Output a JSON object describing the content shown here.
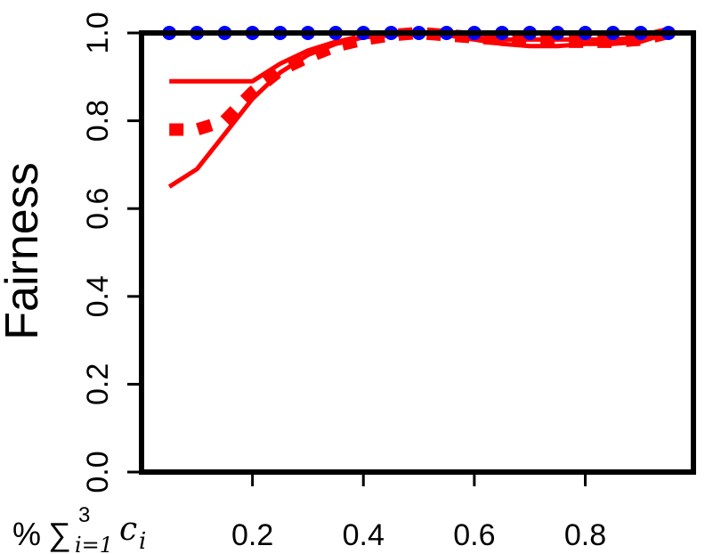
{
  "chart_data": {
    "type": "line",
    "ylabel": "Fairness",
    "xlabel_parts": {
      "percent": "%",
      "sum_symbol": "∑",
      "sum_lower": "i=1",
      "sum_upper": "3",
      "term": "c",
      "term_sub": "i"
    },
    "xlim": [
      0.05,
      0.95
    ],
    "ylim": [
      0.0,
      1.0
    ],
    "x_ticks": [
      0.2,
      0.4,
      0.6,
      0.8
    ],
    "x_tick_labels": [
      "0.2",
      "0.4",
      "0.6",
      "0.8"
    ],
    "y_ticks": [
      0.0,
      0.2,
      0.4,
      0.6,
      0.8,
      1.0
    ],
    "y_tick_labels": [
      "0.0",
      "0.2",
      "0.4",
      "0.6",
      "0.8",
      "1.0"
    ],
    "grid": false,
    "legend": "none",
    "series": [
      {
        "style": "solid",
        "color": "#ff0000",
        "x": [
          0.05,
          0.1,
          0.15,
          0.2,
          0.25,
          0.3,
          0.35,
          0.4,
          0.45,
          0.5,
          0.55,
          0.6,
          0.65,
          0.7,
          0.75,
          0.8,
          0.85,
          0.9,
          0.95
        ],
        "y": [
          0.89,
          0.89,
          0.89,
          0.89,
          0.93,
          0.96,
          0.98,
          0.99,
          0.995,
          1.0,
          0.995,
          0.99,
          0.985,
          0.985,
          0.985,
          0.985,
          0.985,
          0.99,
          1.0
        ]
      },
      {
        "style": "solid",
        "color": "#ff0000",
        "x": [
          0.05,
          0.1,
          0.15,
          0.2,
          0.25,
          0.3,
          0.35,
          0.4,
          0.45,
          0.5,
          0.55,
          0.6,
          0.65,
          0.7,
          0.75,
          0.8,
          0.85,
          0.9,
          0.95
        ],
        "y": [
          0.65,
          0.69,
          0.77,
          0.85,
          0.91,
          0.95,
          0.975,
          0.99,
          0.995,
          1.0,
          0.995,
          0.985,
          0.975,
          0.97,
          0.97,
          0.975,
          0.975,
          0.98,
          1.0
        ]
      },
      {
        "style": "dotted",
        "color": "#ff0000",
        "x": [
          0.05,
          0.1,
          0.15,
          0.2,
          0.25,
          0.3,
          0.35,
          0.4,
          0.45,
          0.5,
          0.55,
          0.6,
          0.65,
          0.7,
          0.75,
          0.8,
          0.85,
          0.9,
          0.95
        ],
        "y": [
          0.78,
          0.78,
          0.8,
          0.865,
          0.915,
          0.945,
          0.97,
          0.985,
          0.995,
          1.0,
          0.995,
          0.99,
          0.985,
          0.98,
          0.98,
          0.98,
          0.98,
          0.985,
          1.0
        ]
      },
      {
        "style": "line-points",
        "color": "#0000ff",
        "x": [
          0.05,
          0.1,
          0.15,
          0.2,
          0.25,
          0.3,
          0.35,
          0.4,
          0.45,
          0.5,
          0.55,
          0.6,
          0.65,
          0.7,
          0.75,
          0.8,
          0.85,
          0.9,
          0.95
        ],
        "y": [
          1.0,
          1.0,
          1.0,
          1.0,
          1.0,
          1.0,
          1.0,
          1.0,
          1.0,
          1.0,
          1.0,
          1.0,
          1.0,
          1.0,
          1.0,
          1.0,
          1.0,
          1.0,
          1.0
        ]
      }
    ]
  }
}
